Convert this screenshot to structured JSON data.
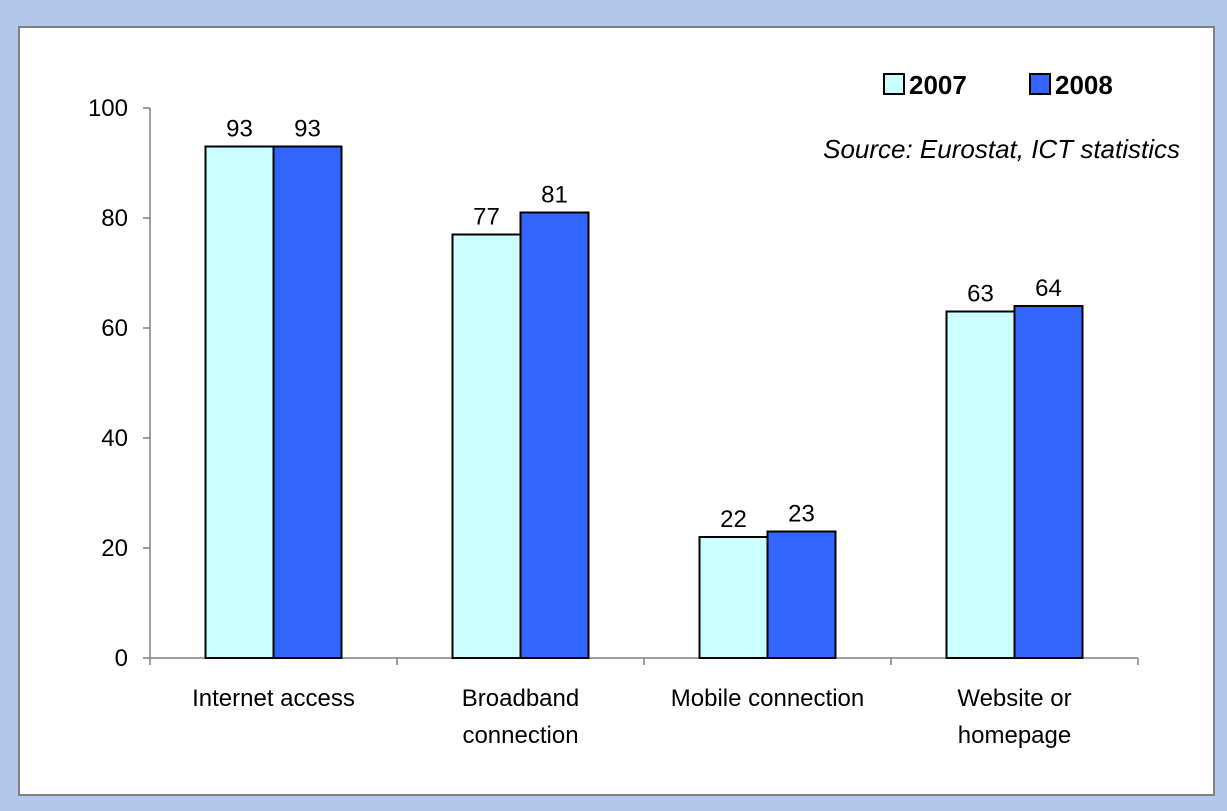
{
  "chart_data": {
    "type": "bar",
    "categories": [
      [
        "Internet access"
      ],
      [
        "Broadband",
        "connection"
      ],
      [
        "Mobile connection"
      ],
      [
        "Website or",
        "homepage"
      ]
    ],
    "series": [
      {
        "name": "2007",
        "values": [
          93,
          77,
          22,
          63
        ],
        "color": "#ccffff"
      },
      {
        "name": "2008",
        "values": [
          93,
          81,
          23,
          64
        ],
        "color": "#3366ff"
      }
    ],
    "ylim": [
      0,
      100
    ],
    "yticks": [
      0,
      20,
      40,
      60,
      80,
      100
    ],
    "legend_position": "top-right",
    "annotation": "Source: Eurostat, ICT statistics",
    "grid": false
  }
}
